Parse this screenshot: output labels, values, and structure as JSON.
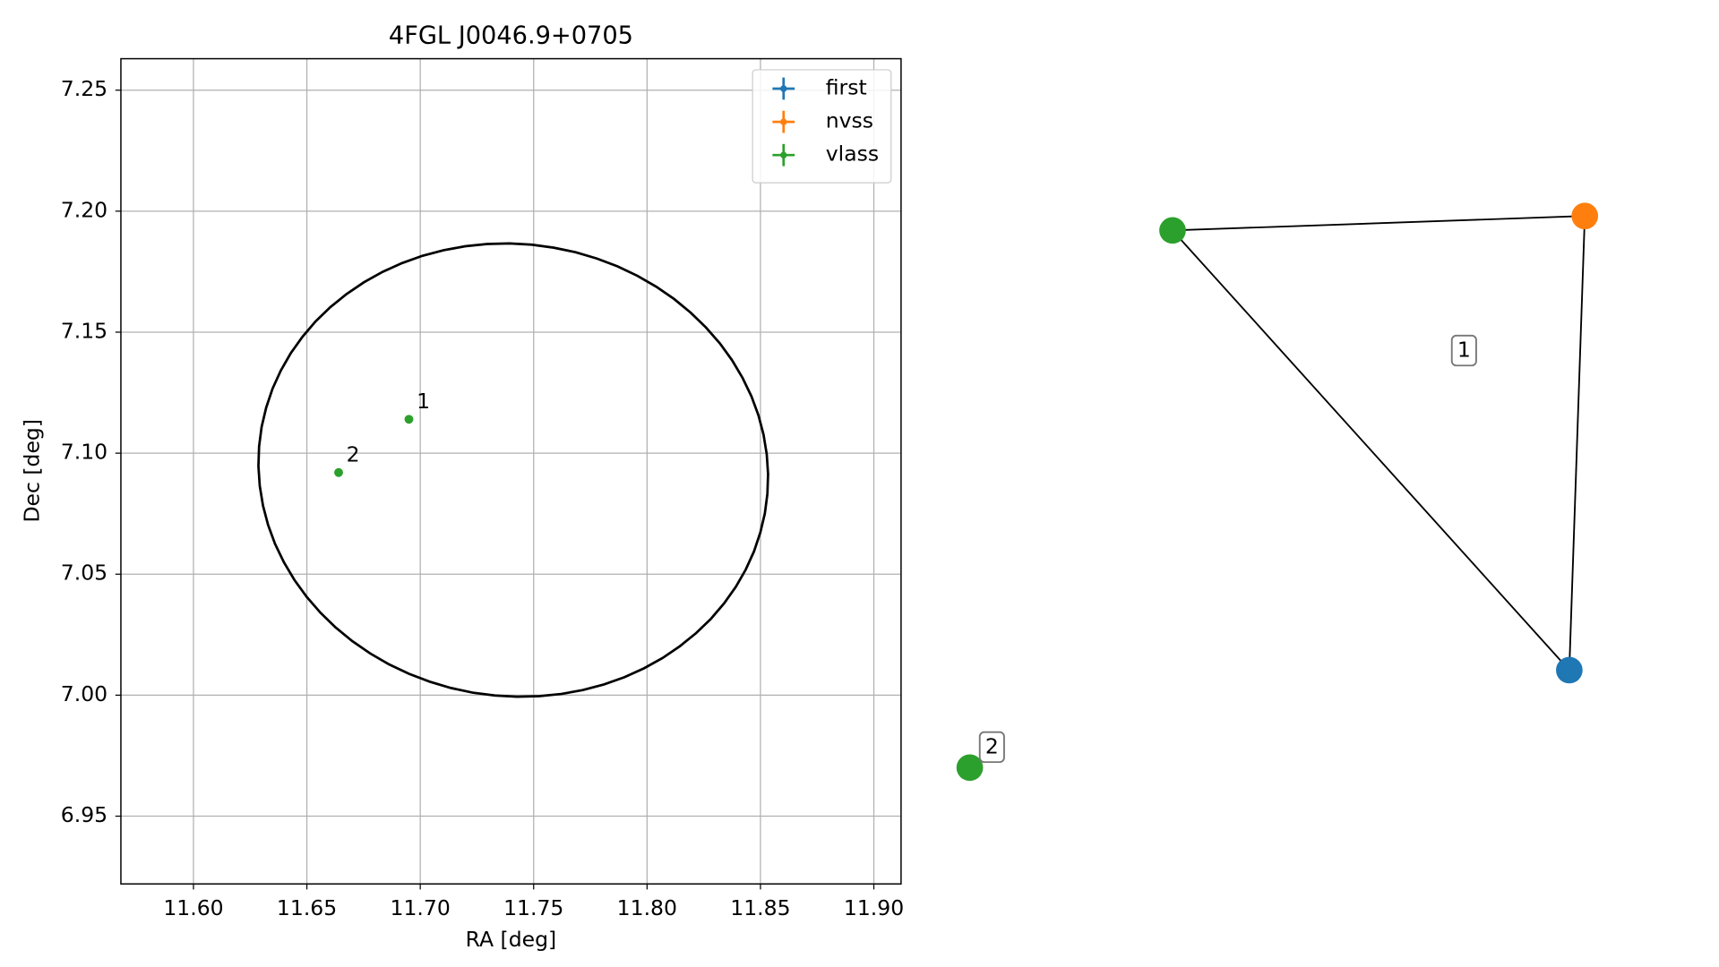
{
  "chart_data": [
    {
      "type": "scatter",
      "title": "4FGL J0046.9+0705",
      "xlabel": "RA [deg]",
      "ylabel": "Dec [deg]",
      "xlim": [
        11.568,
        11.912
      ],
      "ylim": [
        6.922,
        7.263
      ],
      "xticks": [
        {
          "value": 11.6,
          "label": "11.60"
        },
        11.65,
        {
          "value": 11.7,
          "label": "11.70"
        },
        11.75,
        {
          "value": 11.8,
          "label": "11.80"
        },
        11.85,
        {
          "value": 11.9,
          "label": "11.90"
        }
      ],
      "yticks": [
        6.95,
        {
          "value": 7.0,
          "label": "7.00"
        },
        7.05,
        {
          "value": 7.1,
          "label": "7.10"
        },
        7.15,
        {
          "value": 7.2,
          "label": "7.20"
        },
        7.25
      ],
      "grid": true,
      "legend": "upper right",
      "series": [
        {
          "name": "first",
          "color": "#1f77b4",
          "x": [],
          "values": [],
          "labels": []
        },
        {
          "name": "nvss",
          "color": "#ff7f0e",
          "x": [],
          "values": [],
          "labels": []
        },
        {
          "name": "vlass",
          "color": "#2ca02c",
          "x": [
            11.695,
            11.664
          ],
          "values": [
            7.114,
            7.092
          ],
          "labels": [
            "1",
            "2"
          ]
        }
      ],
      "ellipse": {
        "x": 11.741,
        "y": 7.093,
        "width": 0.225,
        "height": 0.187,
        "angle": -5,
        "color": "#000000"
      }
    },
    {
      "type": "graph",
      "nodes": [
        {
          "color": "#2ca02c"
        },
        {
          "color": "#ff7f0e"
        },
        {
          "color": "#1f77b4"
        },
        {
          "color": "#2ca02c"
        }
      ],
      "edges": [
        [
          0,
          1
        ],
        [
          1,
          2
        ],
        [
          2,
          0
        ]
      ],
      "labels": [
        "1",
        "2"
      ]
    }
  ]
}
